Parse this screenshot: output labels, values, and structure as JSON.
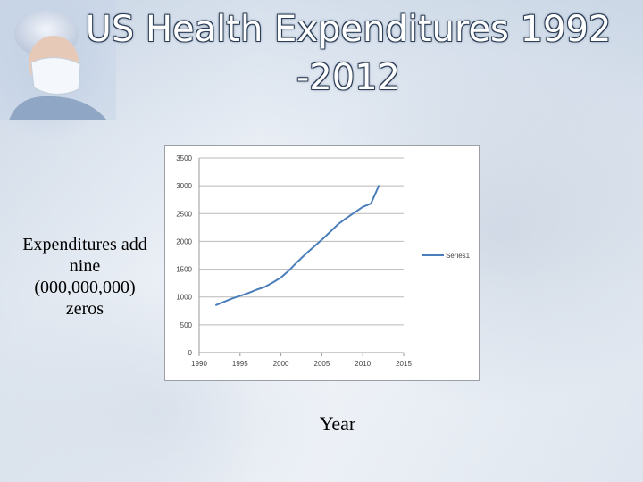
{
  "slide": {
    "title": "US Health Expenditures 1992\n-2012",
    "side_note": "Expenditures add nine (000,000,000) zeros",
    "x_caption": "Year",
    "illustration": "surgeon-photo-icon"
  },
  "chart_data": {
    "type": "line",
    "title": "",
    "xlabel": "",
    "ylabel": "",
    "xlim": [
      1990,
      2015
    ],
    "ylim": [
      0,
      3500
    ],
    "x_ticks": [
      1990,
      1995,
      2000,
      2005,
      2010,
      2015
    ],
    "y_ticks": [
      0,
      500,
      1000,
      1500,
      2000,
      2500,
      3000,
      3500
    ],
    "grid": "horizontal",
    "legend": "right",
    "series": [
      {
        "name": "Series1",
        "color": "#4a7ebb",
        "x": [
          1992,
          1993,
          1994,
          1995,
          1996,
          1997,
          1998,
          1999,
          2000,
          2001,
          2002,
          2003,
          2004,
          2005,
          2006,
          2007,
          2008,
          2009,
          2010,
          2011,
          2012
        ],
        "y": [
          850,
          910,
          970,
          1020,
          1070,
          1130,
          1180,
          1260,
          1350,
          1480,
          1630,
          1770,
          1900,
          2030,
          2170,
          2310,
          2420,
          2520,
          2620,
          2680,
          3010
        ]
      }
    ]
  }
}
